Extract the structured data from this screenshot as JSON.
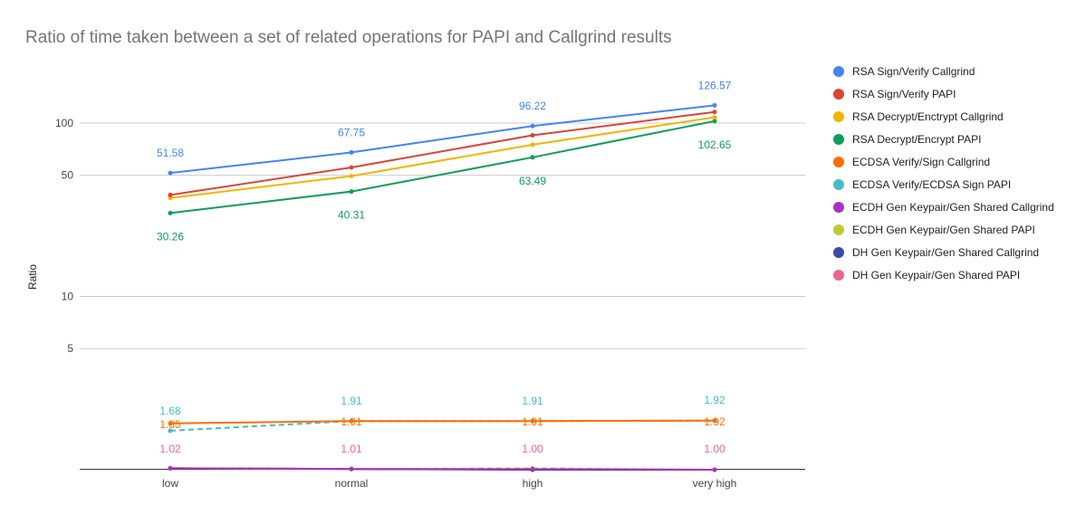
{
  "chart_data": {
    "type": "line",
    "title": "Ratio of time taken between a set of related operations for PAPI and Callgrind results",
    "xlabel": "",
    "ylabel": "Ratio",
    "yscale": "log",
    "ylim": [
      1,
      200
    ],
    "yticks": [
      "5",
      "10",
      "50",
      "100"
    ],
    "ytick_values": [
      5,
      10,
      50,
      100
    ],
    "grid": true,
    "legend_position": "right",
    "categories": [
      "low",
      "normal",
      "high",
      "very high"
    ],
    "series": [
      {
        "name": "RSA Sign/Verify Callgrind",
        "color": "#4285f4",
        "dashed": false,
        "values": [
          51.58,
          67.75,
          96.22,
          126.57
        ],
        "labels": [
          "51.58",
          "67.75",
          "96.22",
          "126.57"
        ],
        "label_pos": "above"
      },
      {
        "name": "RSA Sign/Verify PAPI",
        "color": "#db4437",
        "dashed": false,
        "values": [
          38.5,
          55.5,
          85.0,
          116.0
        ],
        "labels": [
          "",
          "",
          "",
          ""
        ],
        "label_pos": "above"
      },
      {
        "name": "RSA Decrypt/Enctrypt Callgrind",
        "color": "#f4b400",
        "dashed": false,
        "values": [
          37.0,
          49.5,
          75.0,
          108.0
        ],
        "labels": [
          "",
          "",
          "",
          ""
        ],
        "label_pos": "above"
      },
      {
        "name": "RSA Decrypt/Encrypt PAPI",
        "color": "#0f9d58",
        "dashed": false,
        "values": [
          30.26,
          40.31,
          63.49,
          102.65
        ],
        "labels": [
          "30.26",
          "40.31",
          "63.49",
          "102.65"
        ],
        "label_pos": "below"
      },
      {
        "name": "ECDSA Verify/Sign Callgrind",
        "color": "#ff6d01",
        "dashed": false,
        "values": [
          1.85,
          1.91,
          1.91,
          1.92
        ],
        "labels": [
          "1.85",
          "1.91",
          "1.91",
          "1.92"
        ],
        "label_pos": "center"
      },
      {
        "name": "ECDSA Verify/ECDSA Sign PAPI",
        "color": "#46bdc6",
        "dashed": true,
        "values": [
          1.68,
          1.91,
          1.91,
          1.92
        ],
        "labels": [
          "1.68",
          "1.91",
          "1.91",
          "1.92"
        ],
        "label_pos": "above-high"
      },
      {
        "name": "ECDH Gen Keypair/Gen Shared Callgrind",
        "color": "#ab30c4",
        "dashed": false,
        "values": [
          1.02,
          1.01,
          1.01,
          1.0
        ],
        "labels": [
          "",
          "",
          "",
          ""
        ],
        "label_pos": "above"
      },
      {
        "name": "ECDH Gen Keypair/Gen Shared PAPI",
        "color": "#c0ca33",
        "dashed": true,
        "values": [
          1.02,
          1.01,
          1.02,
          1.0
        ],
        "labels": [
          "",
          "",
          "",
          ""
        ],
        "label_pos": "above"
      },
      {
        "name": "DH Gen Keypair/Gen Shared Callgrind",
        "color": "#3949ab",
        "dashed": false,
        "values": [
          1.02,
          1.01,
          1.0,
          1.0
        ],
        "labels": [
          "",
          "",
          "",
          ""
        ],
        "label_pos": "above"
      },
      {
        "name": "DH Gen Keypair/Gen Shared PAPI",
        "color": "#f06292",
        "dashed": false,
        "values": [
          1.02,
          1.01,
          1.0,
          1.0
        ],
        "labels": [
          "1.02",
          "1.01",
          "1.00",
          "1.00"
        ],
        "label_pos": "above-far"
      }
    ]
  }
}
